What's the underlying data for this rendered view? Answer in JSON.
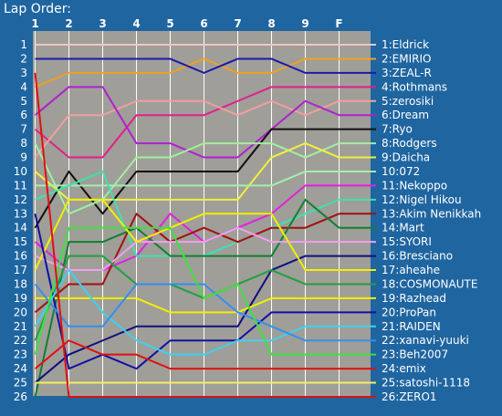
{
  "title": "Lap Order:",
  "chart_data": {
    "type": "line",
    "title": "Lap Order:",
    "x": [
      "1",
      "2",
      "3",
      "4",
      "5",
      "6",
      "7",
      "8",
      "9",
      "F"
    ],
    "ylim": [
      1,
      26
    ],
    "y_inverted": true,
    "y_ticks": [
      1,
      2,
      3,
      4,
      5,
      6,
      7,
      8,
      9,
      10,
      11,
      12,
      13,
      14,
      15,
      16,
      17,
      18,
      19,
      20,
      21,
      22,
      23,
      24,
      25,
      26
    ],
    "plot_background": "#a09e98",
    "grid": true,
    "legend": "right",
    "series": [
      {
        "name": "1:Eldrick",
        "color": "#f0c8c8",
        "positions": [
          1,
          1,
          1,
          1,
          1,
          1,
          1,
          1,
          1,
          1
        ]
      },
      {
        "name": "2:EMIRIO",
        "color": "#f0a020",
        "positions": [
          4,
          3,
          3,
          3,
          3,
          2,
          3,
          3,
          2,
          2
        ]
      },
      {
        "name": "3:ZEAL-R",
        "color": "#1a1aa8",
        "positions": [
          2,
          2,
          2,
          2,
          2,
          3,
          2,
          2,
          3,
          3
        ]
      },
      {
        "name": "4:Rothmans",
        "color": "#e0208a",
        "positions": [
          7,
          9,
          9,
          6,
          6,
          6,
          5,
          4,
          4,
          4
        ]
      },
      {
        "name": "5:zerosiki",
        "color": "#f0a0a0",
        "positions": [
          9,
          6,
          6,
          5,
          5,
          5,
          6,
          5,
          6,
          5
        ]
      },
      {
        "name": "6:Dream",
        "color": "#b020d0",
        "positions": [
          6,
          4,
          4,
          8,
          8,
          9,
          9,
          7,
          5,
          6
        ]
      },
      {
        "name": "7:Ryo",
        "color": "#101010",
        "positions": [
          14,
          10,
          13,
          10,
          10,
          10,
          10,
          7,
          7,
          7
        ]
      },
      {
        "name": "8:Rodgers",
        "color": "#a0f0a0",
        "positions": [
          8,
          13,
          12,
          9,
          9,
          8,
          8,
          8,
          9,
          8
        ]
      },
      {
        "name": "9:Daicha",
        "color": "#f0f040",
        "positions": [
          10,
          12,
          12,
          12,
          12,
          12,
          12,
          9,
          8,
          9
        ]
      },
      {
        "name": "10:072",
        "color": "#a0f0b0",
        "positions": [
          11,
          11,
          11,
          11,
          11,
          11,
          11,
          11,
          10,
          10
        ]
      },
      {
        "name": "11:Nekoppo",
        "color": "#e020e0",
        "positions": [
          15,
          17,
          17,
          16,
          13,
          15,
          14,
          13,
          11,
          11
        ]
      },
      {
        "name": "12:Nigel Hikou",
        "color": "#40e0b0",
        "positions": [
          12,
          11,
          10,
          16,
          16,
          16,
          15,
          14,
          13,
          12
        ]
      },
      {
        "name": "13:Akim Nenikkah",
        "color": "#a01010",
        "positions": [
          20,
          18,
          18,
          13,
          15,
          14,
          15,
          14,
          14,
          13
        ]
      },
      {
        "name": "14:Mart",
        "color": "#108030",
        "positions": [
          26,
          15,
          15,
          14,
          16,
          16,
          16,
          16,
          12,
          14
        ]
      },
      {
        "name": "15:SYORI",
        "color": "#f0a0f0",
        "positions": [
          16,
          17,
          17,
          15,
          15,
          15,
          14,
          15,
          15,
          15
        ]
      },
      {
        "name": "16:Bresciano",
        "color": "#101080",
        "positions": [
          25,
          23,
          22,
          21,
          21,
          21,
          21,
          17,
          16,
          16
        ]
      },
      {
        "name": "17:aheahe",
        "color": "#f0f000",
        "positions": [
          17,
          12,
          12,
          15,
          14,
          13,
          13,
          13,
          17,
          17
        ]
      },
      {
        "name": "18:COSMONAUTE",
        "color": "#20a040",
        "positions": [
          22,
          16,
          16,
          18,
          18,
          19,
          18,
          17,
          18,
          18
        ]
      },
      {
        "name": "19:Razhead",
        "color": "#f0f000",
        "positions": [
          19,
          19,
          19,
          19,
          20,
          20,
          20,
          19,
          19,
          19
        ]
      },
      {
        "name": "20:ProPan",
        "color": "#1010a0",
        "positions": [
          13,
          24,
          23,
          24,
          22,
          22,
          22,
          20,
          20,
          20
        ]
      },
      {
        "name": "21:RAIDEN",
        "color": "#40d0f0",
        "positions": [
          21,
          17,
          20,
          22,
          23,
          23,
          22,
          22,
          21,
          21
        ]
      },
      {
        "name": "22:xanavi-yuuki",
        "color": "#3090f0",
        "positions": [
          18,
          21,
          21,
          18,
          18,
          18,
          20,
          21,
          22,
          22
        ]
      },
      {
        "name": "23:Beh2007",
        "color": "#40e040",
        "positions": [
          23,
          14,
          14,
          14,
          14,
          19,
          18,
          23,
          23,
          23
        ]
      },
      {
        "name": "24:emix",
        "color": "#e01010",
        "positions": [
          24,
          22,
          23,
          23,
          24,
          24,
          24,
          24,
          24,
          24
        ]
      },
      {
        "name": "25:satoshi-1118",
        "color": "#f0f060",
        "positions": [
          25,
          25,
          25,
          25,
          25,
          25,
          25,
          25,
          25,
          25
        ]
      },
      {
        "name": "26:ZERO1",
        "color": "#e01010",
        "positions": [
          3,
          26,
          26,
          26,
          26,
          26,
          26,
          26,
          26,
          26
        ]
      }
    ]
  }
}
